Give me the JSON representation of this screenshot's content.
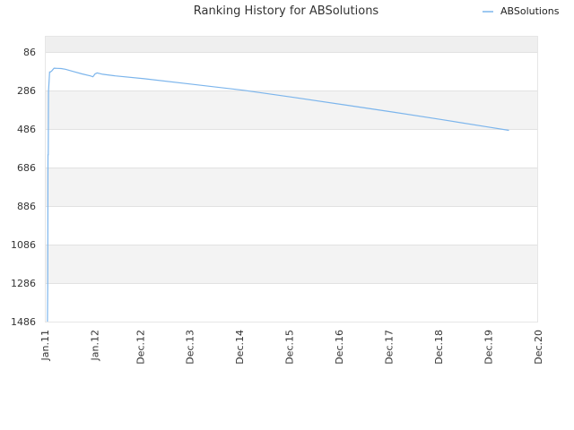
{
  "chart_data": {
    "type": "line",
    "title": "Ranking History for ABSolutions",
    "xlabel": "",
    "ylabel": "",
    "y_inverted": true,
    "ylim": [
      1486,
      0
    ],
    "yticks": [
      86,
      286,
      486,
      686,
      886,
      1086,
      1286,
      1486
    ],
    "x_start": "2011-01-01",
    "x_end": "2020-12-01",
    "x_ticks": [
      {
        "label": "Jan.11",
        "date": "2011-01-01"
      },
      {
        "label": "Jan.12",
        "date": "2012-01-01"
      },
      {
        "label": "Dec.12",
        "date": "2012-12-01"
      },
      {
        "label": "Dec.13",
        "date": "2013-12-01"
      },
      {
        "label": "Dec.14",
        "date": "2014-12-01"
      },
      {
        "label": "Dec.15",
        "date": "2015-12-01"
      },
      {
        "label": "Dec.16",
        "date": "2016-12-01"
      },
      {
        "label": "Dec.17",
        "date": "2017-12-01"
      },
      {
        "label": "Dec.18",
        "date": "2018-12-01"
      },
      {
        "label": "Dec.19",
        "date": "2019-12-01"
      },
      {
        "label": "Dec.20",
        "date": "2020-12-01"
      }
    ],
    "legend": "top-right",
    "grid": true,
    "series": [
      {
        "name": "ABSolutions",
        "color": "#7cb5ec",
        "points": [
          {
            "x": "2011-01-20",
            "y": 1486
          },
          {
            "x": "2011-01-22",
            "y": 1300
          },
          {
            "x": "2011-01-24",
            "y": 620
          },
          {
            "x": "2011-01-26",
            "y": 620
          },
          {
            "x": "2011-01-28",
            "y": 290
          },
          {
            "x": "2011-02-01",
            "y": 240
          },
          {
            "x": "2011-02-05",
            "y": 190
          },
          {
            "x": "2011-02-10",
            "y": 190
          },
          {
            "x": "2011-02-20",
            "y": 185
          },
          {
            "x": "2011-03-10",
            "y": 170
          },
          {
            "x": "2011-04-01",
            "y": 171
          },
          {
            "x": "2011-05-01",
            "y": 172
          },
          {
            "x": "2011-06-01",
            "y": 176
          },
          {
            "x": "2011-08-01",
            "y": 188
          },
          {
            "x": "2011-10-01",
            "y": 200
          },
          {
            "x": "2011-12-01",
            "y": 210
          },
          {
            "x": "2011-12-20",
            "y": 215
          },
          {
            "x": "2012-01-05",
            "y": 200
          },
          {
            "x": "2012-01-20",
            "y": 195
          },
          {
            "x": "2012-03-01",
            "y": 202
          },
          {
            "x": "2012-06-01",
            "y": 210
          },
          {
            "x": "2013-01-01",
            "y": 225
          },
          {
            "x": "2014-01-01",
            "y": 255
          },
          {
            "x": "2015-01-01",
            "y": 285
          },
          {
            "x": "2016-01-01",
            "y": 322
          },
          {
            "x": "2017-01-01",
            "y": 360
          },
          {
            "x": "2018-01-01",
            "y": 398
          },
          {
            "x": "2019-01-01",
            "y": 438
          },
          {
            "x": "2019-12-01",
            "y": 476
          },
          {
            "x": "2020-05-01",
            "y": 493
          }
        ]
      }
    ]
  }
}
